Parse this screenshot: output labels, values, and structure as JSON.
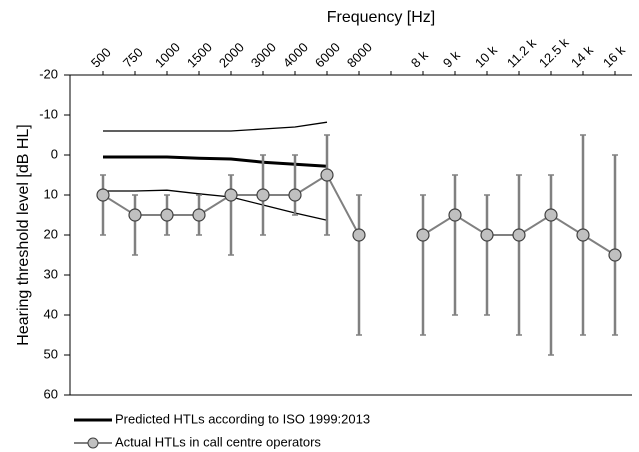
{
  "chart_data": {
    "type": "line",
    "x_label": "Frequency [Hz]",
    "y_label": "Hearing threshold level [dB HL]",
    "categories": [
      "500",
      "750",
      "1000",
      "1500",
      "2000",
      "3000",
      "4000",
      "6000",
      "8000",
      null,
      "8 k",
      "9 k",
      "10 k",
      "11.2 k",
      "12.5 k",
      "14 k",
      "16 k"
    ],
    "ylim": [
      -20,
      60
    ],
    "y_inverted": true,
    "yticks": [
      -20,
      -10,
      0,
      10,
      20,
      30,
      40,
      50,
      60
    ],
    "grid": false,
    "series": [
      {
        "name": "Predicted HTLs according to ISO 1999:2013",
        "color": "#000000",
        "values": [
          0.5,
          0.5,
          0.5,
          0.8,
          1,
          1.8,
          2.3,
          2.8,
          null,
          null,
          null,
          null,
          null,
          null,
          null,
          null,
          null
        ],
        "lower": [
          -6,
          -6,
          -6,
          -6,
          -6,
          -6.5,
          -7,
          -8.2,
          null,
          null,
          null,
          null,
          null,
          null,
          null,
          null,
          null
        ],
        "upper": [
          9,
          9,
          8.8,
          9.7,
          10.5,
          12.5,
          14.5,
          16.3,
          null,
          null,
          null,
          null,
          null,
          null,
          null,
          null,
          null
        ]
      },
      {
        "name": "Actual HTLs in call centre operators",
        "color": "#808080",
        "marker_color": "#c0c0c0",
        "values": [
          10,
          15,
          15,
          15,
          10,
          10,
          10,
          5,
          20,
          null,
          20,
          15,
          20,
          20,
          15,
          20,
          25
        ],
        "error_low": [
          5,
          10,
          10,
          10,
          5,
          0,
          0,
          -5,
          10,
          null,
          10,
          5,
          10,
          5,
          5,
          -5,
          0
        ],
        "error_high": [
          20,
          25,
          20,
          20,
          25,
          20,
          15,
          20,
          45,
          null,
          45,
          40,
          40,
          45,
          50,
          45,
          45
        ]
      }
    ]
  }
}
